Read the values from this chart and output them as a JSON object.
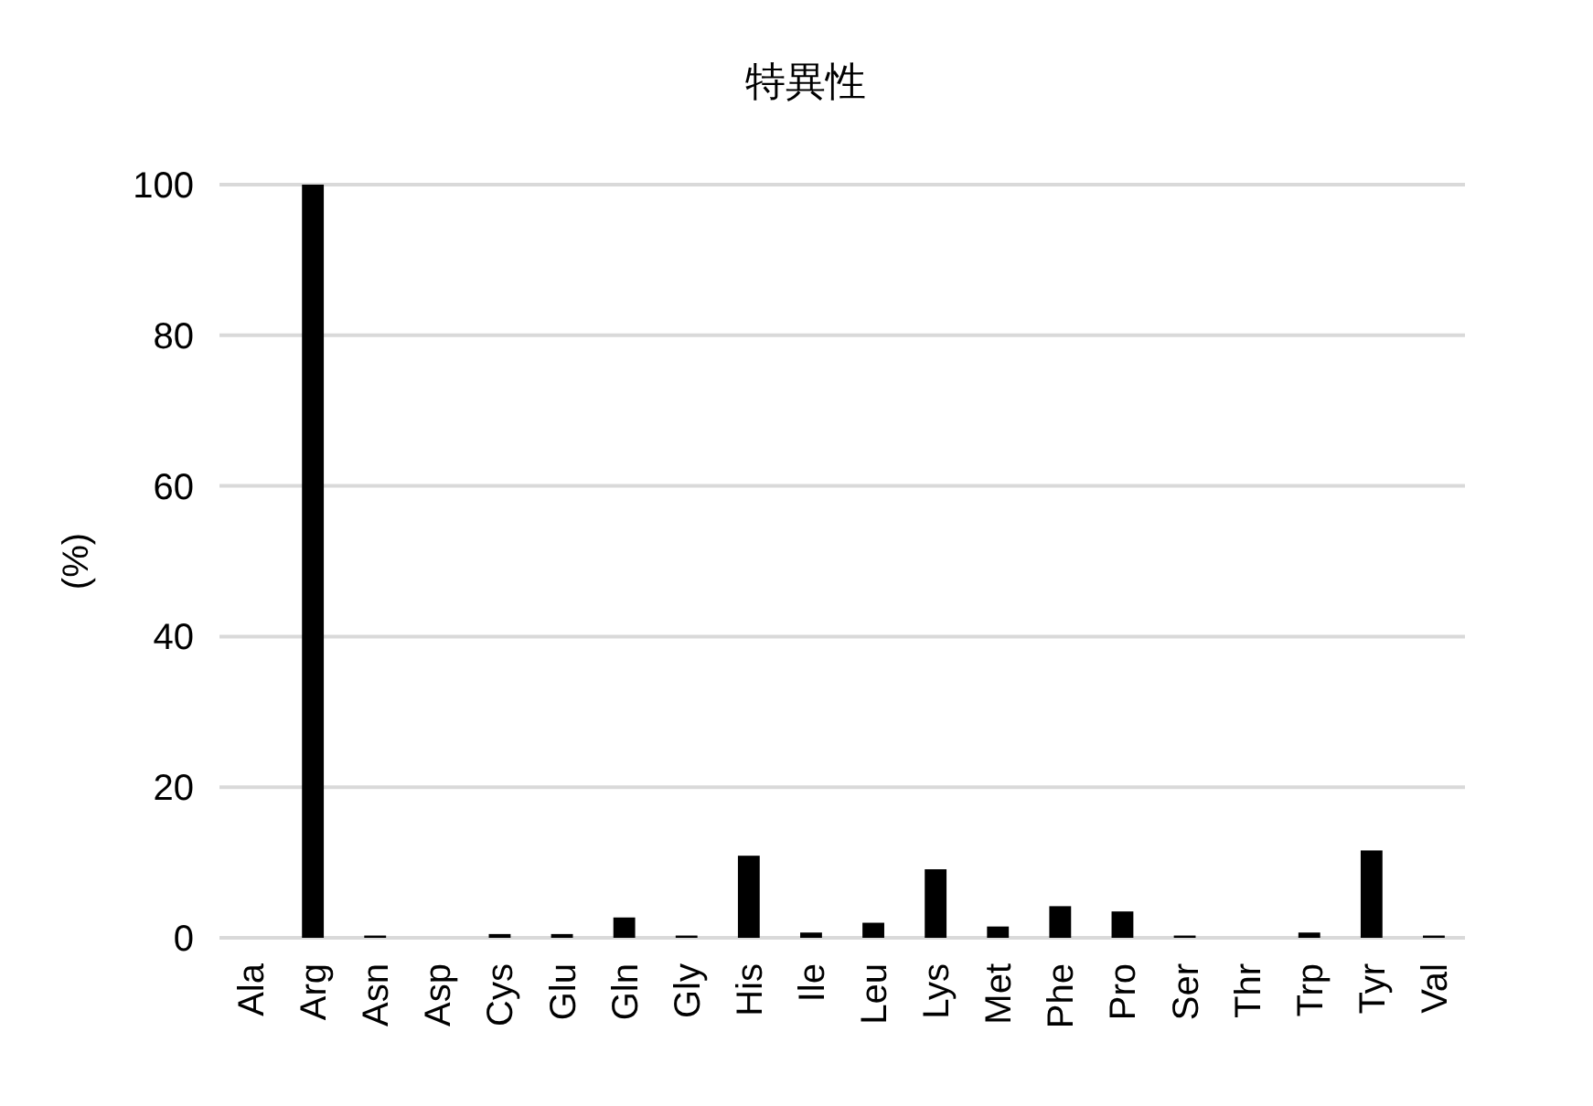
{
  "chart_data": {
    "type": "bar",
    "title": "特異性",
    "ylabel": "(%)",
    "categories": [
      "Ala",
      "Arg",
      "Asn",
      "Asp",
      "Cys",
      "Glu",
      "Gln",
      "Gly",
      "His",
      "Ile",
      "Leu",
      "Lys",
      "Met",
      "Phe",
      "Pro",
      "Ser",
      "Thr",
      "Trp",
      "Tyr",
      "Val"
    ],
    "values": [
      0,
      100,
      0.3,
      0,
      0.5,
      0.5,
      2.7,
      0.3,
      10.9,
      0.7,
      2.0,
      9.1,
      1.5,
      4.2,
      3.5,
      0.3,
      0,
      0.7,
      11.6,
      0.3
    ],
    "color": "#000000",
    "ylim": [
      0,
      100
    ],
    "yticks": [
      0,
      20,
      40,
      60,
      80,
      100
    ],
    "grid": "y"
  }
}
